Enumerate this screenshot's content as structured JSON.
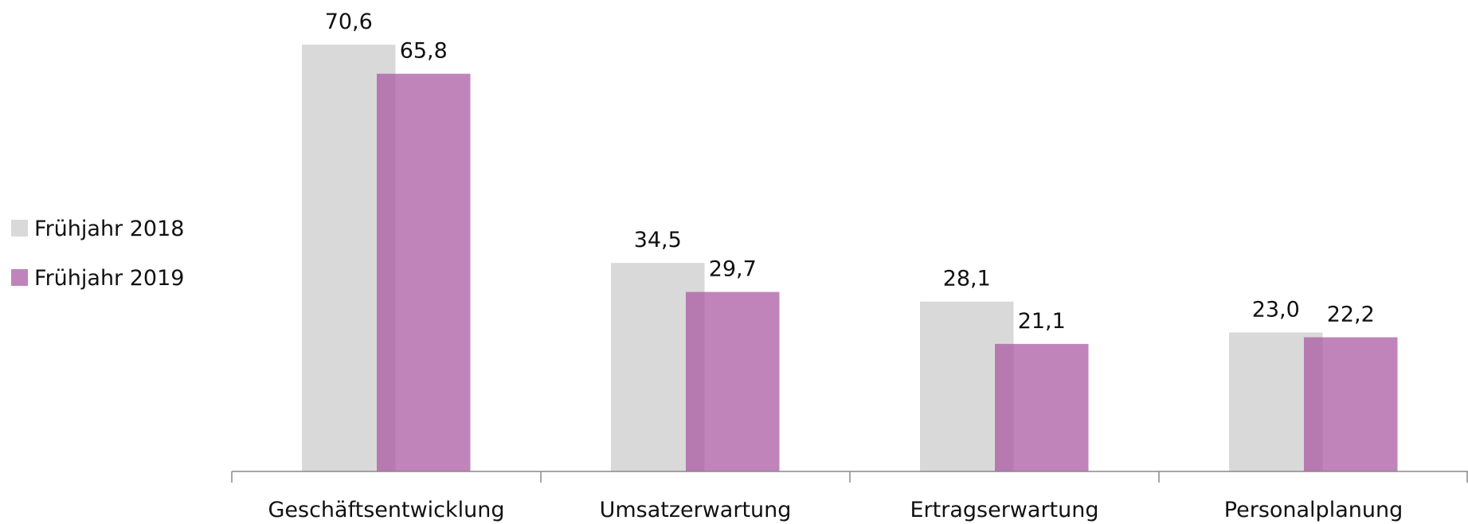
{
  "chart_data": {
    "type": "bar",
    "categories": [
      "Geschäftsentwicklung",
      "Umsatzerwartung",
      "Ertragserwartung",
      "Personalplanung"
    ],
    "series": [
      {
        "name": "Frühjahr 2018",
        "color": "#d9d9d9",
        "values": [
          70.6,
          34.5,
          28.1,
          23.0
        ],
        "value_labels": [
          "70,6",
          "34,5",
          "28,1",
          "23,0"
        ]
      },
      {
        "name": "Frühjahr 2019",
        "color": "#a8559f",
        "values": [
          65.8,
          29.7,
          21.1,
          22.2
        ],
        "value_labels": [
          "65,8",
          "29,7",
          "21,1",
          "22,2"
        ]
      }
    ],
    "ylim": [
      0,
      78
    ],
    "legend": "left"
  }
}
